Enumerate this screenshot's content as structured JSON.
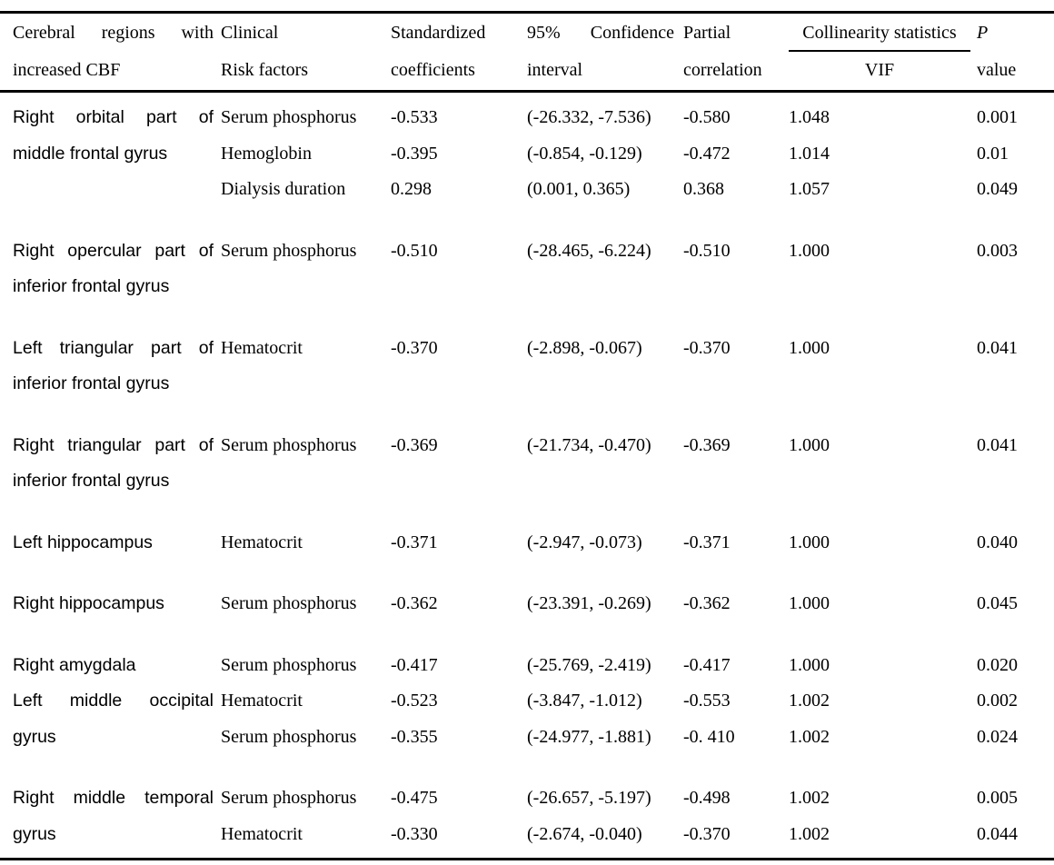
{
  "colors": {
    "text": "#000000",
    "background": "#ffffff",
    "rule": "#000000"
  },
  "table": {
    "header": {
      "region": {
        "line1": "Cerebral regions with",
        "line2": "increased CBF"
      },
      "risk": {
        "line1": "Clinical",
        "line2": "Risk factors"
      },
      "coef": {
        "line1": "Standardized",
        "line2": "coefficients"
      },
      "ci": {
        "line1": "95% Confidence",
        "line2": "interval"
      },
      "partial": {
        "line1": "Partial",
        "line2": "correlation"
      },
      "collinearity": {
        "group": "Collinearity statistics",
        "sub": "VIF"
      },
      "p": {
        "line1": "P",
        "line2": "value"
      }
    },
    "blocks": [
      {
        "regions": [
          {
            "lines": [
              "Right orbital part of",
              "middle frontal gyrus"
            ]
          }
        ],
        "rows": [
          {
            "factor": "Serum phosphorus",
            "coef": "-0.533",
            "ci": "(-26.332, -7.536)",
            "partial": "-0.580",
            "vif": "1.048",
            "p": "0.001"
          },
          {
            "factor": "Hemoglobin",
            "coef": "-0.395",
            "ci": "(-0.854, -0.129)",
            "partial": "-0.472",
            "vif": "1.014",
            "p": "0.01"
          },
          {
            "factor": "Dialysis duration",
            "coef": "0.298",
            "ci": "(0.001, 0.365)",
            "partial": "0.368",
            "vif": "1.057",
            "p": "0.049"
          }
        ]
      },
      {
        "regions": [
          {
            "lines": [
              "Right opercular part of",
              "inferior frontal gyrus"
            ]
          }
        ],
        "rows": [
          {
            "factor": "Serum phosphorus",
            "coef": "-0.510",
            "ci": "(-28.465, -6.224)",
            "partial": "-0.510",
            "vif": "1.000",
            "p": "0.003"
          }
        ]
      },
      {
        "regions": [
          {
            "lines": [
              "Left triangular part of",
              "inferior frontal gyrus"
            ]
          }
        ],
        "rows": [
          {
            "factor": "Hematocrit",
            "coef": "-0.370",
            "ci": "(-2.898, -0.067)",
            "partial": "-0.370",
            "vif": "1.000",
            "p": "0.041"
          }
        ]
      },
      {
        "regions": [
          {
            "lines": [
              "Right triangular part of",
              "inferior frontal gyrus"
            ]
          }
        ],
        "rows": [
          {
            "factor": "Serum phosphorus",
            "coef": "-0.369",
            "ci": "(-21.734, -0.470)",
            "partial": "-0.369",
            "vif": "1.000",
            "p": "0.041"
          }
        ]
      },
      {
        "regions": [
          {
            "lines": [
              "Left hippocampus"
            ]
          }
        ],
        "rows": [
          {
            "factor": "Hematocrit",
            "coef": "-0.371",
            "ci": "(-2.947, -0.073)",
            "partial": "-0.371",
            "vif": "1.000",
            "p": "0.040"
          }
        ]
      },
      {
        "regions": [
          {
            "lines": [
              "Right hippocampus"
            ]
          }
        ],
        "rows": [
          {
            "factor": "Serum phosphorus",
            "coef": "-0.362",
            "ci": "(-23.391, -0.269)",
            "partial": "-0.362",
            "vif": "1.000",
            "p": "0.045"
          }
        ]
      },
      {
        "regions": [
          {
            "lines": [
              "Right amygdala"
            ]
          },
          {
            "lines": [
              "Left middle occipital",
              "gyrus"
            ]
          }
        ],
        "rows": [
          {
            "factor": "Serum phosphorus",
            "coef": "-0.417",
            "ci": "(-25.769, -2.419)",
            "partial": "-0.417",
            "vif": "1.000",
            "p": "0.020"
          },
          {
            "factor": "Hematocrit",
            "coef": "-0.523",
            "ci": "(-3.847, -1.012)",
            "partial": "-0.553",
            "vif": "1.002",
            "p": "0.002"
          },
          {
            "factor": "Serum phosphorus",
            "coef": "-0.355",
            "ci": "(-24.977, -1.881)",
            "partial": "-0. 410",
            "vif": "1.002",
            "p": "0.024"
          }
        ]
      },
      {
        "regions": [
          {
            "lines": [
              "Right middle temporal",
              "gyrus"
            ]
          }
        ],
        "rows": [
          {
            "factor": "Serum phosphorus",
            "coef": "-0.475",
            "ci": "(-26.657, -5.197)",
            "partial": "-0.498",
            "vif": "1.002",
            "p": "0.005"
          },
          {
            "factor": "Hematocrit",
            "coef": "-0.330",
            "ci": "(-2.674, -0.040)",
            "partial": "-0.370",
            "vif": "1.002",
            "p": "0.044"
          }
        ]
      }
    ]
  }
}
